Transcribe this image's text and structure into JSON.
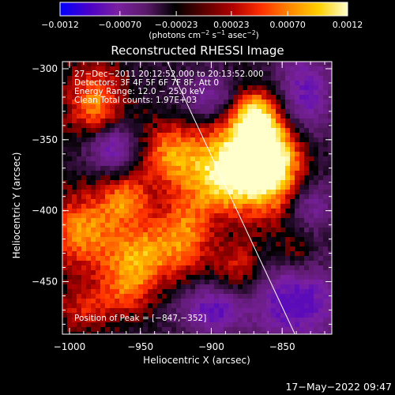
{
  "chart_data": {
    "type": "heatmap",
    "title": "Reconstructed RHESSI Image",
    "xlabel": "Heliocentric X (arcsec)",
    "ylabel": "Heliocentric Y (arcsec)",
    "xlim": [
      -1005,
      -815
    ],
    "ylim": [
      -487,
      -295
    ],
    "x_ticks": [
      -1000,
      -950,
      -900,
      -850
    ],
    "x_tick_labels": [
      "−1000",
      "−950",
      "−900",
      "−850"
    ],
    "y_ticks": [
      -300,
      -350,
      -400,
      -450
    ],
    "y_tick_labels": [
      "−300",
      "−350",
      "−400",
      "−450"
    ],
    "colorbar": {
      "range": [
        -0.0012,
        0.0012
      ],
      "ticks": [
        -0.0012,
        -0.0007,
        -0.00023,
        0.00023,
        0.0007,
        0.0012
      ],
      "tick_labels": [
        "−0.0012",
        "−0.00070",
        "−0.00023",
        "0.00023",
        "0.00070",
        "0.0012"
      ],
      "unit_prefix": "(photons cm",
      "unit_exp1": "−2",
      "unit_mid": " s",
      "unit_exp2": "−1",
      "unit_mid2": " asec",
      "unit_exp3": "−2",
      "unit_suffix": ")",
      "colormap_stops": [
        "#0000ff",
        "#4a00c8",
        "#7a20a0",
        "#5a1a6a",
        "#000000",
        "#5a0000",
        "#b00000",
        "#ff3000",
        "#ff8800",
        "#ffd000",
        "#ffffcc"
      ]
    },
    "annotations": [
      "27−Dec−2011 20:12:52.000 to 20:13:52.000",
      "Detectors: 3F 4F 5F 6F 7F 8F, Att 0",
      "Energy Range: 12.0 − 25.0 keV",
      "Clean     Total counts: 1.97E+03"
    ],
    "peak_label": "Position of Peak = [−847,−352]",
    "peak_position": [
      -847,
      -352
    ],
    "limb_line": [
      [
        -931,
        -295
      ],
      [
        -841,
        -487
      ]
    ],
    "hotspots": [
      {
        "x": -870,
        "y": -352,
        "sx": 20,
        "sy": 22,
        "amp": 1.05
      },
      {
        "x": -858,
        "y": -372,
        "sx": 18,
        "sy": 24,
        "amp": 0.95
      },
      {
        "x": -892,
        "y": -380,
        "sx": 16,
        "sy": 16,
        "amp": 0.75
      },
      {
        "x": -982,
        "y": -325,
        "sx": 14,
        "sy": 20,
        "amp": 0.8
      },
      {
        "x": -928,
        "y": -360,
        "sx": 20,
        "sy": 16,
        "amp": 0.8
      },
      {
        "x": -960,
        "y": -392,
        "sx": 12,
        "sy": 12,
        "amp": 0.65
      },
      {
        "x": -990,
        "y": -415,
        "sx": 18,
        "sy": 20,
        "amp": 0.8
      },
      {
        "x": -948,
        "y": -430,
        "sx": 16,
        "sy": 16,
        "amp": 0.75
      },
      {
        "x": -918,
        "y": -415,
        "sx": 14,
        "sy": 22,
        "amp": 0.7
      },
      {
        "x": -960,
        "y": -455,
        "sx": 14,
        "sy": 14,
        "amp": 0.55
      },
      {
        "x": -880,
        "y": -440,
        "sx": 12,
        "sy": 14,
        "amp": 0.5
      },
      {
        "x": -990,
        "y": -470,
        "sx": 14,
        "sy": 12,
        "amp": 0.45
      },
      {
        "x": -840,
        "y": -430,
        "sx": 10,
        "sy": 10,
        "amp": 0.35
      },
      {
        "x": -870,
        "y": -330,
        "sx": 10,
        "sy": 10,
        "amp": 0.5
      }
    ],
    "coldspots": [
      {
        "x": -970,
        "y": -355,
        "sx": 14,
        "sy": 12,
        "amp": 0.9
      },
      {
        "x": -840,
        "y": -465,
        "sx": 22,
        "sy": 20,
        "amp": 0.9
      },
      {
        "x": -900,
        "y": -470,
        "sx": 16,
        "sy": 12,
        "amp": 0.8
      },
      {
        "x": -835,
        "y": -320,
        "sx": 14,
        "sy": 24,
        "amp": 0.8
      },
      {
        "x": -900,
        "y": -320,
        "sx": 14,
        "sy": 12,
        "amp": 0.6
      },
      {
        "x": -830,
        "y": -395,
        "sx": 12,
        "sy": 14,
        "amp": 0.6
      }
    ]
  },
  "footer": {
    "timestamp": "17−May−2022 09:47"
  }
}
